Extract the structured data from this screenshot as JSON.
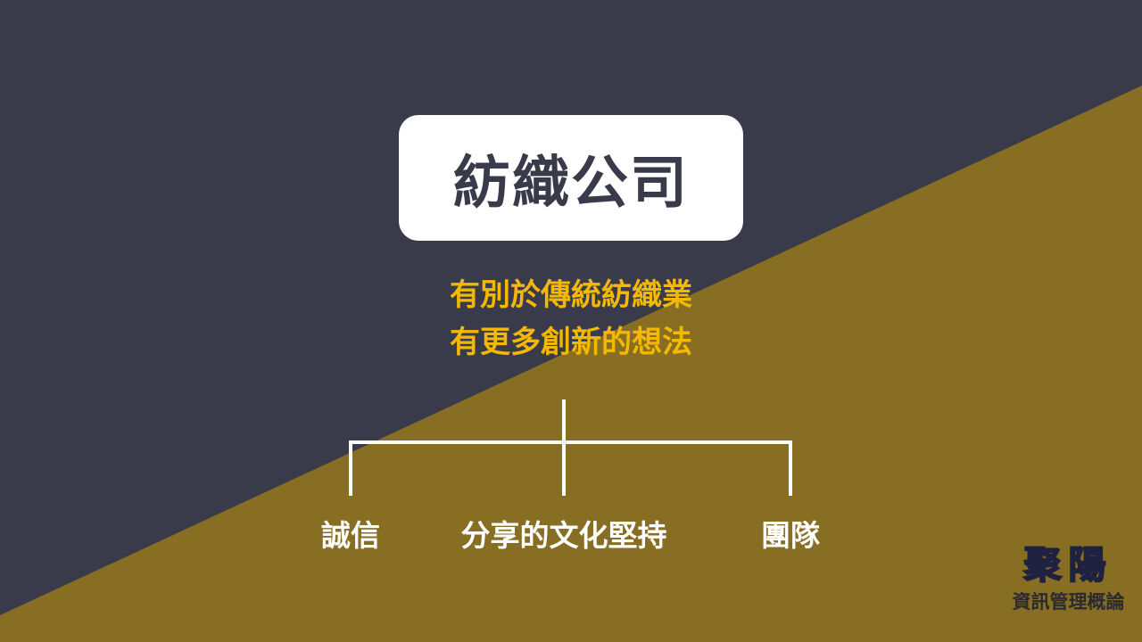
{
  "colors": {
    "dark": "#393b4a",
    "olive": "#886e22",
    "accent": "#f5b800",
    "white": "#ffffff"
  },
  "title": "紡織公司",
  "subtitle": [
    "有別於傳統紡織業",
    "有更多創新的想法"
  ],
  "branches": [
    "誠信",
    "分享的文化堅持",
    "團隊"
  ],
  "logo": {
    "main": "聚陽",
    "sub": "資訊管理概論"
  }
}
